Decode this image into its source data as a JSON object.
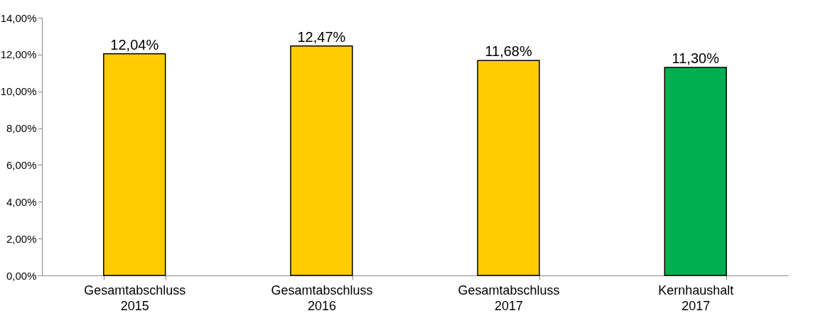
{
  "chart_data": {
    "type": "bar",
    "categories": [
      "Gesamtabschluss\n2015",
      "Gesamtabschluss\n2016",
      "Gesamtabschluss\n2017",
      "Kernhaushalt\n2017"
    ],
    "values": [
      12.04,
      12.47,
      11.68,
      11.3
    ],
    "colors": [
      "#ffcc00",
      "#ffcc00",
      "#ffcc00",
      "#00b050"
    ],
    "value_labels": [
      "12,04%",
      "12,47%",
      "11,68%",
      "11,30%"
    ],
    "ylim": [
      0,
      14
    ],
    "yticks": [
      {
        "value": 0,
        "label": "0,00%"
      },
      {
        "value": 2,
        "label": "2,00%"
      },
      {
        "value": 4,
        "label": "4,00%"
      },
      {
        "value": 6,
        "label": "6,00%"
      },
      {
        "value": 8,
        "label": "8,00%"
      },
      {
        "value": 10,
        "label": "10,00%"
      },
      {
        "value": 12,
        "label": "12,00%"
      },
      {
        "value": 14,
        "label": "14,00%"
      }
    ]
  }
}
